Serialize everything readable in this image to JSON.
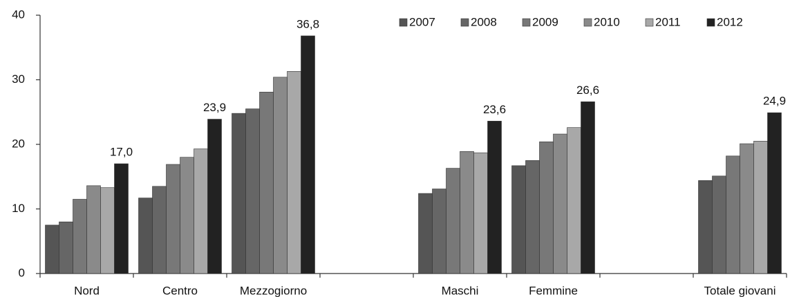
{
  "chart_data": {
    "type": "bar",
    "categories": [
      "Nord",
      "Centro",
      "Mezzogiorno",
      null,
      "Maschi",
      "Femmine",
      null,
      "Totale giovani"
    ],
    "series": [
      {
        "name": "2007",
        "color": "#555555",
        "values": [
          7.5,
          11.7,
          24.8,
          null,
          12.4,
          16.7,
          null,
          14.4
        ]
      },
      {
        "name": "2008",
        "color": "#666666",
        "values": [
          8.0,
          13.5,
          25.5,
          null,
          13.1,
          17.5,
          null,
          15.1
        ]
      },
      {
        "name": "2009",
        "color": "#787878",
        "values": [
          11.5,
          16.9,
          28.1,
          null,
          16.3,
          20.4,
          null,
          18.2
        ]
      },
      {
        "name": "2010",
        "color": "#8a8a8a",
        "values": [
          13.6,
          18.0,
          30.4,
          null,
          18.9,
          21.6,
          null,
          20.1
        ]
      },
      {
        "name": "2011",
        "color": "#a8a8a8",
        "values": [
          13.3,
          19.3,
          31.3,
          null,
          18.7,
          22.6,
          null,
          20.5
        ]
      },
      {
        "name": "2012",
        "color": "#222222",
        "values": [
          17.0,
          23.9,
          36.8,
          null,
          23.6,
          26.6,
          null,
          24.9
        ],
        "value_labels": [
          "17,0",
          "23,9",
          "36,8",
          null,
          "23,6",
          "26,6",
          null,
          "24,9"
        ]
      }
    ],
    "ylim": [
      0,
      40
    ],
    "yticks": [
      0,
      10,
      20,
      30,
      40
    ],
    "grid": false,
    "legend": "top-right"
  }
}
